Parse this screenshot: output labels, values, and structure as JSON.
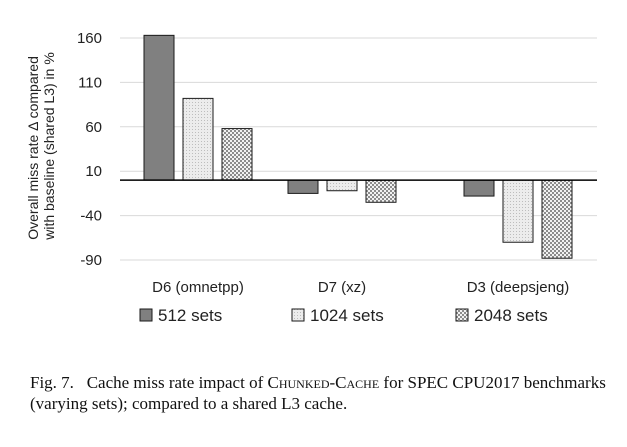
{
  "chart_data": {
    "type": "bar",
    "categories": [
      "D6 (omnetpp)",
      "D7 (xz)",
      "D3 (deepsjeng)"
    ],
    "series": [
      {
        "name": "512 sets",
        "values": [
          163,
          -15,
          -18
        ],
        "color": "#808080",
        "pattern": "solid"
      },
      {
        "name": "1024 sets",
        "values": [
          92,
          -12,
          -70
        ],
        "color": "#e6e6e6",
        "pattern": "light"
      },
      {
        "name": "2048 sets",
        "values": [
          58,
          -25,
          -88
        ],
        "color": "#d9d9d9",
        "pattern": "checker"
      }
    ],
    "ylabel": [
      "Overall miss rate Δ compared",
      "with baseline (shared L3) in %"
    ],
    "yticks": [
      160,
      110,
      60,
      10,
      -40,
      -90
    ],
    "ylim": [
      -90,
      160
    ],
    "grid": true,
    "legend_position": "bottom"
  },
  "caption": {
    "prefix": "Fig. 7.",
    "text_before": "Cache miss rate impact of",
    "name": "Chunked-Cache",
    "text_after": "for SPEC CPU2017 benchmarks (varying sets); compared to a shared L3 cache."
  }
}
